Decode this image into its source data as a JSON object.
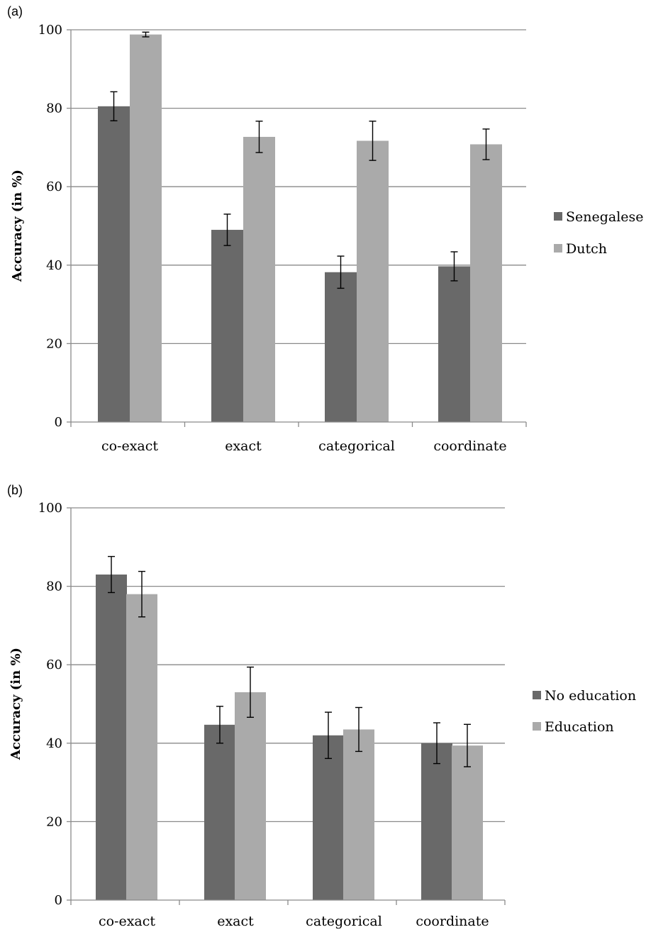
{
  "chart_data": [
    {
      "type": "bar",
      "panel_label": "(a)",
      "categories": [
        "co-exact",
        "exact",
        "categorical",
        "coordinate"
      ],
      "ylabel": "Accuracy (in %)",
      "ylim": [
        0,
        100
      ],
      "yticks": [
        0,
        20,
        40,
        60,
        80,
        100
      ],
      "grid": true,
      "legend_position": "right",
      "series": [
        {
          "name": "Senegalese",
          "color": "#696969",
          "values": [
            80.5,
            49,
            38.2,
            39.7
          ],
          "errors": [
            3.7,
            4.0,
            4.1,
            3.7
          ]
        },
        {
          "name": "Dutch",
          "color": "#aaaaaa",
          "values": [
            98.8,
            72.7,
            71.7,
            70.8
          ],
          "errors": [
            0.6,
            4.0,
            5.0,
            3.9
          ]
        }
      ]
    },
    {
      "type": "bar",
      "panel_label": "(b)",
      "categories": [
        "co-exact",
        "exact",
        "categorical",
        "coordinate"
      ],
      "ylabel": "Accuracy (in %)",
      "ylim": [
        0,
        100
      ],
      "yticks": [
        0,
        20,
        40,
        60,
        80,
        100
      ],
      "grid": true,
      "legend_position": "right",
      "series": [
        {
          "name": "No education",
          "color": "#696969",
          "values": [
            83,
            44.7,
            42,
            40
          ],
          "errors": [
            4.6,
            4.7,
            5.9,
            5.2
          ]
        },
        {
          "name": "Education",
          "color": "#aaaaaa",
          "values": [
            78,
            53,
            43.5,
            39.4
          ],
          "errors": [
            5.8,
            6.4,
            5.6,
            5.4
          ]
        }
      ]
    }
  ]
}
